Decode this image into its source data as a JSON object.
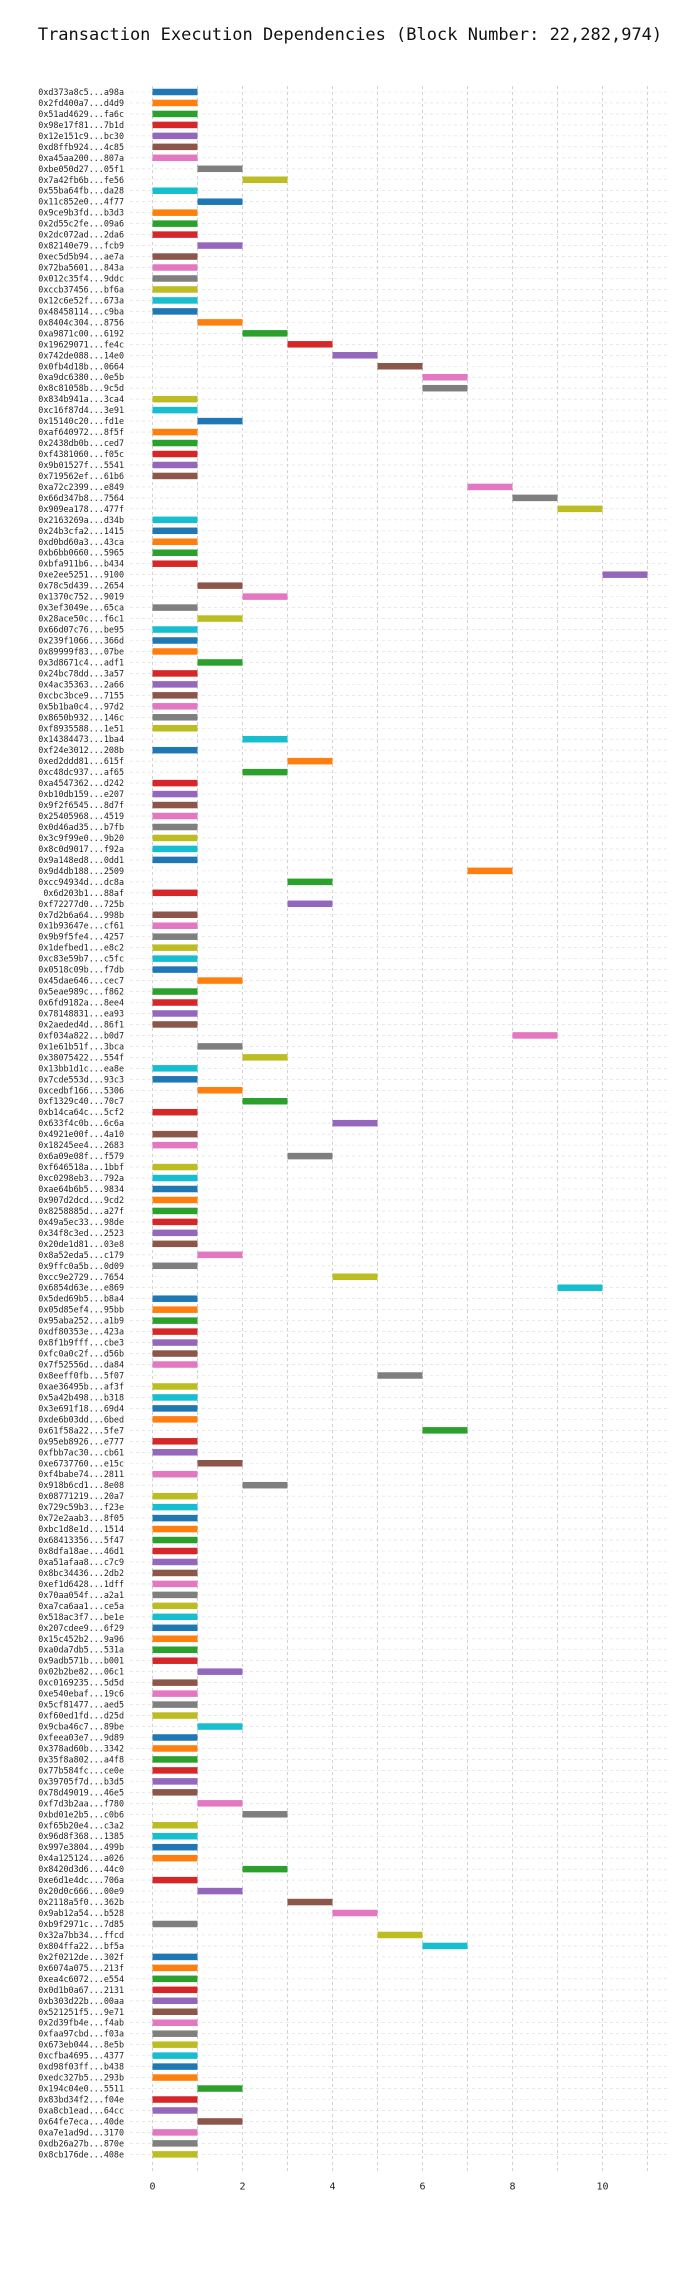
{
  "chart_data": {
    "type": "bar",
    "orientation": "horizontal",
    "title": "Transaction Execution Dependencies (Block Number: 22,282,974)",
    "xlabel": "",
    "ylabel": "",
    "xlim": [
      -0.5,
      11.5
    ],
    "xticks": [
      "0",
      "2",
      "4",
      "6",
      "8",
      "10"
    ],
    "grid": true,
    "palette": [
      "#1f77b4",
      "#ff7f0e",
      "#2ca02c",
      "#d62728",
      "#9467bd",
      "#8c564b",
      "#e377c2",
      "#7f7f7f",
      "#bcbd22",
      "#17becf"
    ],
    "transactions": [
      {
        "label": "0xd373a8c5...a98a",
        "start": 0,
        "end": 1
      },
      {
        "label": "0x2fd400a7...d4d9",
        "start": 0,
        "end": 1
      },
      {
        "label": "0x51ad4629...fa6c",
        "start": 0,
        "end": 1
      },
      {
        "label": "0x98e17f81...7b1d",
        "start": 0,
        "end": 1
      },
      {
        "label": "0x12e151c9...bc30",
        "start": 0,
        "end": 1
      },
      {
        "label": "0xd8ffb924...4c85",
        "start": 0,
        "end": 1
      },
      {
        "label": "0xa45aa200...807a",
        "start": 0,
        "end": 1
      },
      {
        "label": "0xbe050d27...05f1",
        "start": 1,
        "end": 2
      },
      {
        "label": "0x7a42fb6b...fe56",
        "start": 2,
        "end": 3
      },
      {
        "label": "0x55ba64fb...da28",
        "start": 0,
        "end": 1
      },
      {
        "label": "0x11c852e0...4f77",
        "start": 1,
        "end": 2
      },
      {
        "label": "0x9ce9b3fd...b3d3",
        "start": 0,
        "end": 1
      },
      {
        "label": "0x2d55c2fe...09a6",
        "start": 0,
        "end": 1
      },
      {
        "label": "0x2dc072ad...2da6",
        "start": 0,
        "end": 1
      },
      {
        "label": "0x82140e79...fcb9",
        "start": 1,
        "end": 2
      },
      {
        "label": "0xec5d5b94...ae7a",
        "start": 0,
        "end": 1
      },
      {
        "label": "0x72ba5601...843a",
        "start": 0,
        "end": 1
      },
      {
        "label": "0x012c35f4...9ddc",
        "start": 0,
        "end": 1
      },
      {
        "label": "0xccb37456...bf6a",
        "start": 0,
        "end": 1
      },
      {
        "label": "0x12c6e52f...673a",
        "start": 0,
        "end": 1
      },
      {
        "label": "0x48458114...c9ba",
        "start": 0,
        "end": 1
      },
      {
        "label": "0x8404c304...8756",
        "start": 1,
        "end": 2
      },
      {
        "label": "0xa9871c00...6192",
        "start": 2,
        "end": 3
      },
      {
        "label": "0x19629071...fe4c",
        "start": 3,
        "end": 4
      },
      {
        "label": "0x742de088...14e0",
        "start": 4,
        "end": 5
      },
      {
        "label": "0x0fb4d18b...0664",
        "start": 5,
        "end": 6
      },
      {
        "label": "0xa9dc6380...0e5b",
        "start": 6,
        "end": 7
      },
      {
        "label": "0x8c81058b...9c5d",
        "start": 6,
        "end": 7
      },
      {
        "label": "0x834b941a...3ca4",
        "start": 0,
        "end": 1
      },
      {
        "label": "0xc16f87d4...3e91",
        "start": 0,
        "end": 1
      },
      {
        "label": "0x15140c20...fd1e",
        "start": 1,
        "end": 2
      },
      {
        "label": "0xaf640972...8f5f",
        "start": 0,
        "end": 1
      },
      {
        "label": "0x2438db0b...ced7",
        "start": 0,
        "end": 1
      },
      {
        "label": "0xf4381060...f05c",
        "start": 0,
        "end": 1
      },
      {
        "label": "0x9b01527f...5541",
        "start": 0,
        "end": 1
      },
      {
        "label": "0x719562ef...61b6",
        "start": 0,
        "end": 1
      },
      {
        "label": "0xa72c2399...e849",
        "start": 7,
        "end": 8
      },
      {
        "label": "0x66d347b8...7564",
        "start": 8,
        "end": 9
      },
      {
        "label": "0x909ea178...477f",
        "start": 9,
        "end": 10
      },
      {
        "label": "0x2163269a...d34b",
        "start": 0,
        "end": 1
      },
      {
        "label": "0x24b3cfa2...1415",
        "start": 0,
        "end": 1
      },
      {
        "label": "0xd0bd60a3...43ca",
        "start": 0,
        "end": 1
      },
      {
        "label": "0xb6bb0660...5965",
        "start": 0,
        "end": 1
      },
      {
        "label": "0xbfa911b6...b434",
        "start": 0,
        "end": 1
      },
      {
        "label": "0xe2ee5251...9100",
        "start": 10,
        "end": 11
      },
      {
        "label": "0x78c5d439...2654",
        "start": 1,
        "end": 2
      },
      {
        "label": "0x1370c752...9019",
        "start": 2,
        "end": 3
      },
      {
        "label": "0x3ef3049e...65ca",
        "start": 0,
        "end": 1
      },
      {
        "label": "0x28ace50c...f6c1",
        "start": 1,
        "end": 2
      },
      {
        "label": "0x66d07c76...be95",
        "start": 0,
        "end": 1
      },
      {
        "label": "0x239f1066...366d",
        "start": 0,
        "end": 1
      },
      {
        "label": "0x89999f83...07be",
        "start": 0,
        "end": 1
      },
      {
        "label": "0x3d8671c4...adf1",
        "start": 1,
        "end": 2
      },
      {
        "label": "0x24bc78dd...3a57",
        "start": 0,
        "end": 1
      },
      {
        "label": "0x4ac35363...2a66",
        "start": 0,
        "end": 1
      },
      {
        "label": "0xcbc3bce9...7155",
        "start": 0,
        "end": 1
      },
      {
        "label": "0x5b1ba0c4...97d2",
        "start": 0,
        "end": 1
      },
      {
        "label": "0x8650b932...146c",
        "start": 0,
        "end": 1
      },
      {
        "label": "0xf8935588...1e51",
        "start": 0,
        "end": 1
      },
      {
        "label": "0x14384473...1ba4",
        "start": 2,
        "end": 3
      },
      {
        "label": "0xf24e3012...208b",
        "start": 0,
        "end": 1
      },
      {
        "label": "0xed2ddd81...615f",
        "start": 3,
        "end": 4
      },
      {
        "label": "0xc48dc937...af65",
        "start": 2,
        "end": 3
      },
      {
        "label": "0xa4547362...d242",
        "start": 0,
        "end": 1
      },
      {
        "label": "0xb10db159...e207",
        "start": 0,
        "end": 1
      },
      {
        "label": "0x9f2f6545...8d7f",
        "start": 0,
        "end": 1
      },
      {
        "label": "0x25405968...4519",
        "start": 0,
        "end": 1
      },
      {
        "label": "0x0d46ad35...b7fb",
        "start": 0,
        "end": 1
      },
      {
        "label": "0x3c9f99e0...9b20",
        "start": 0,
        "end": 1
      },
      {
        "label": "0x8c0d9017...f92a",
        "start": 0,
        "end": 1
      },
      {
        "label": "0x9a148ed8...0dd1",
        "start": 0,
        "end": 1
      },
      {
        "label": "0x9d4db188...2509",
        "start": 7,
        "end": 8
      },
      {
        "label": "0xcc94934d...dc8a",
        "start": 3,
        "end": 4
      },
      {
        "label": "0x6d203b1...88af",
        "start": 0,
        "end": 1
      },
      {
        "label": "0xf72277d0...725b",
        "start": 3,
        "end": 4
      },
      {
        "label": "0x7d2b6a64...998b",
        "start": 0,
        "end": 1
      },
      {
        "label": "0x1b93647e...cf61",
        "start": 0,
        "end": 1
      },
      {
        "label": "0x9b9f5fe4...4257",
        "start": 0,
        "end": 1
      },
      {
        "label": "0x1defbed1...e8c2",
        "start": 0,
        "end": 1
      },
      {
        "label": "0xc83e59b7...c5fc",
        "start": 0,
        "end": 1
      },
      {
        "label": "0x0518c09b...f7db",
        "start": 0,
        "end": 1
      },
      {
        "label": "0x45dae646...cec7",
        "start": 1,
        "end": 2
      },
      {
        "label": "0x5eae989c...f862",
        "start": 0,
        "end": 1
      },
      {
        "label": "0x6fd9182a...8ee4",
        "start": 0,
        "end": 1
      },
      {
        "label": "0x78148831...ea93",
        "start": 0,
        "end": 1
      },
      {
        "label": "0x2aeded4d...86f1",
        "start": 0,
        "end": 1
      },
      {
        "label": "0xf034a822...b0d7",
        "start": 8,
        "end": 9
      },
      {
        "label": "0x1e61b51f...3bca",
        "start": 1,
        "end": 2
      },
      {
        "label": "0x38075422...554f",
        "start": 2,
        "end": 3
      },
      {
        "label": "0x13bb1d1c...ea8e",
        "start": 0,
        "end": 1
      },
      {
        "label": "0x7cde553d...93c3",
        "start": 0,
        "end": 1
      },
      {
        "label": "0xcedbf166...5306",
        "start": 1,
        "end": 2
      },
      {
        "label": "0xf1329c40...70c7",
        "start": 2,
        "end": 3
      },
      {
        "label": "0xb14ca64c...5cf2",
        "start": 0,
        "end": 1
      },
      {
        "label": "0x633f4c0b...6c6a",
        "start": 4,
        "end": 5
      },
      {
        "label": "0x4921e00f...4a10",
        "start": 0,
        "end": 1
      },
      {
        "label": "0x18245ee4...2683",
        "start": 0,
        "end": 1
      },
      {
        "label": "0x6a09e08f...f579",
        "start": 3,
        "end": 4
      },
      {
        "label": "0xf646518a...1bbf",
        "start": 0,
        "end": 1
      },
      {
        "label": "0xc0298eb3...792a",
        "start": 0,
        "end": 1
      },
      {
        "label": "0xae64b6b5...9834",
        "start": 0,
        "end": 1
      },
      {
        "label": "0x907d2dcd...9cd2",
        "start": 0,
        "end": 1
      },
      {
        "label": "0x8258885d...a27f",
        "start": 0,
        "end": 1
      },
      {
        "label": "0x49a5ec33...98de",
        "start": 0,
        "end": 1
      },
      {
        "label": "0x34f8c3ed...2523",
        "start": 0,
        "end": 1
      },
      {
        "label": "0x20de1d81...03e8",
        "start": 0,
        "end": 1
      },
      {
        "label": "0x8a52eda5...c179",
        "start": 1,
        "end": 2
      },
      {
        "label": "0x9ffc0a5b...0d09",
        "start": 0,
        "end": 1
      },
      {
        "label": "0xcc9e2729...7654",
        "start": 4,
        "end": 5
      },
      {
        "label": "0x6854d63e...e869",
        "start": 9,
        "end": 10
      },
      {
        "label": "0x5ded69b5...b8a4",
        "start": 0,
        "end": 1
      },
      {
        "label": "0x05d85ef4...95bb",
        "start": 0,
        "end": 1
      },
      {
        "label": "0x95aba252...a1b9",
        "start": 0,
        "end": 1
      },
      {
        "label": "0xdf80353e...423a",
        "start": 0,
        "end": 1
      },
      {
        "label": "0x8f1b9fff...cbe3",
        "start": 0,
        "end": 1
      },
      {
        "label": "0xfc0a0c2f...d56b",
        "start": 0,
        "end": 1
      },
      {
        "label": "0x7f52556d...da84",
        "start": 0,
        "end": 1
      },
      {
        "label": "0x8eeff0fb...5f07",
        "start": 5,
        "end": 6
      },
      {
        "label": "0xae36495b...af3f",
        "start": 0,
        "end": 1
      },
      {
        "label": "0x5a42b498...b318",
        "start": 0,
        "end": 1
      },
      {
        "label": "0x3e691f18...69d4",
        "start": 0,
        "end": 1
      },
      {
        "label": "0xde6b03dd...6bed",
        "start": 0,
        "end": 1
      },
      {
        "label": "0x61f58a22...5fe7",
        "start": 6,
        "end": 7
      },
      {
        "label": "0x95eb8926...e777",
        "start": 0,
        "end": 1
      },
      {
        "label": "0xfbb7ac30...cb61",
        "start": 0,
        "end": 1
      },
      {
        "label": "0xe6737760...e15c",
        "start": 1,
        "end": 2
      },
      {
        "label": "0xf4babe74...2811",
        "start": 0,
        "end": 1
      },
      {
        "label": "0x918b6cd1...8e08",
        "start": 2,
        "end": 3
      },
      {
        "label": "0x08771219...20a7",
        "start": 0,
        "end": 1
      },
      {
        "label": "0x729c59b3...f23e",
        "start": 0,
        "end": 1
      },
      {
        "label": "0x72e2aab3...8f05",
        "start": 0,
        "end": 1
      },
      {
        "label": "0xbc1d8e1d...1514",
        "start": 0,
        "end": 1
      },
      {
        "label": "0x68413356...5f47",
        "start": 0,
        "end": 1
      },
      {
        "label": "0x8dfa18ae...46d1",
        "start": 0,
        "end": 1
      },
      {
        "label": "0xa51afaa8...c7c9",
        "start": 0,
        "end": 1
      },
      {
        "label": "0x8bc34436...2db2",
        "start": 0,
        "end": 1
      },
      {
        "label": "0xef1d6428...1dff",
        "start": 0,
        "end": 1
      },
      {
        "label": "0x70aa054f...a2a1",
        "start": 0,
        "end": 1
      },
      {
        "label": "0xa7ca6aa1...ce5a",
        "start": 0,
        "end": 1
      },
      {
        "label": "0x518ac3f7...be1e",
        "start": 0,
        "end": 1
      },
      {
        "label": "0x207cdee9...6f29",
        "start": 0,
        "end": 1
      },
      {
        "label": "0x15c452b2...9a96",
        "start": 0,
        "end": 1
      },
      {
        "label": "0xa0da7db5...531a",
        "start": 0,
        "end": 1
      },
      {
        "label": "0x9adb571b...b001",
        "start": 0,
        "end": 1
      },
      {
        "label": "0x02b2be82...06c1",
        "start": 1,
        "end": 2
      },
      {
        "label": "0xc0169235...5d5d",
        "start": 0,
        "end": 1
      },
      {
        "label": "0xe540ebaf...19c6",
        "start": 0,
        "end": 1
      },
      {
        "label": "0x5cf81477...aed5",
        "start": 0,
        "end": 1
      },
      {
        "label": "0xf60ed1fd...d25d",
        "start": 0,
        "end": 1
      },
      {
        "label": "0x9cba46c7...89be",
        "start": 1,
        "end": 2
      },
      {
        "label": "0xfeea03e7...9d89",
        "start": 0,
        "end": 1
      },
      {
        "label": "0x378ad60b...3342",
        "start": 0,
        "end": 1
      },
      {
        "label": "0x35f8a802...a4f8",
        "start": 0,
        "end": 1
      },
      {
        "label": "0x77b584fc...ce0e",
        "start": 0,
        "end": 1
      },
      {
        "label": "0x39705f7d...b3d5",
        "start": 0,
        "end": 1
      },
      {
        "label": "0x78d49019...46e5",
        "start": 0,
        "end": 1
      },
      {
        "label": "0xf7d3b2aa...f780",
        "start": 1,
        "end": 2
      },
      {
        "label": "0xbd01e2b5...c0b6",
        "start": 2,
        "end": 3
      },
      {
        "label": "0xf65b20e4...c3a2",
        "start": 0,
        "end": 1
      },
      {
        "label": "0x96d8f368...1385",
        "start": 0,
        "end": 1
      },
      {
        "label": "0x997e3804...499b",
        "start": 0,
        "end": 1
      },
      {
        "label": "0x4a125124...a026",
        "start": 0,
        "end": 1
      },
      {
        "label": "0x8420d3d6...44c0",
        "start": 2,
        "end": 3
      },
      {
        "label": "0xe6d1e4dc...706a",
        "start": 0,
        "end": 1
      },
      {
        "label": "0x20d0c666...00e9",
        "start": 1,
        "end": 2
      },
      {
        "label": "0x2118a5f0...362b",
        "start": 3,
        "end": 4
      },
      {
        "label": "0x9ab12a54...b528",
        "start": 4,
        "end": 5
      },
      {
        "label": "0xb9f2971c...7d85",
        "start": 0,
        "end": 1
      },
      {
        "label": "0x32a7bb34...ffcd",
        "start": 5,
        "end": 6
      },
      {
        "label": "0x804ffa22...bf5a",
        "start": 6,
        "end": 7
      },
      {
        "label": "0x2f0212de...302f",
        "start": 0,
        "end": 1
      },
      {
        "label": "0x6074a075...213f",
        "start": 0,
        "end": 1
      },
      {
        "label": "0xea4c6072...e554",
        "start": 0,
        "end": 1
      },
      {
        "label": "0x0d1b0a67...2131",
        "start": 0,
        "end": 1
      },
      {
        "label": "0xb303d22b...00aa",
        "start": 0,
        "end": 1
      },
      {
        "label": "0x521251f5...9e71",
        "start": 0,
        "end": 1
      },
      {
        "label": "0x2d39fb4e...f4ab",
        "start": 0,
        "end": 1
      },
      {
        "label": "0xfaa97cbd...f03a",
        "start": 0,
        "end": 1
      },
      {
        "label": "0x673eb044...8e5b",
        "start": 0,
        "end": 1
      },
      {
        "label": "0xcfba4695...4377",
        "start": 0,
        "end": 1
      },
      {
        "label": "0xd98f03ff...b438",
        "start": 0,
        "end": 1
      },
      {
        "label": "0xedc327b5...293b",
        "start": 0,
        "end": 1
      },
      {
        "label": "0x194c04e0...5511",
        "start": 1,
        "end": 2
      },
      {
        "label": "0x83bd34f2...f04e",
        "start": 0,
        "end": 1
      },
      {
        "label": "0xa8cb1ead...64cc",
        "start": 0,
        "end": 1
      },
      {
        "label": "0x64fe7eca...40de",
        "start": 1,
        "end": 2
      },
      {
        "label": "0xa7e1ad9d...3170",
        "start": 0,
        "end": 1
      },
      {
        "label": "0xdb26a27b...870e",
        "start": 0,
        "end": 1
      },
      {
        "label": "0x8cb176de...408e",
        "start": 0,
        "end": 1
      }
    ]
  }
}
